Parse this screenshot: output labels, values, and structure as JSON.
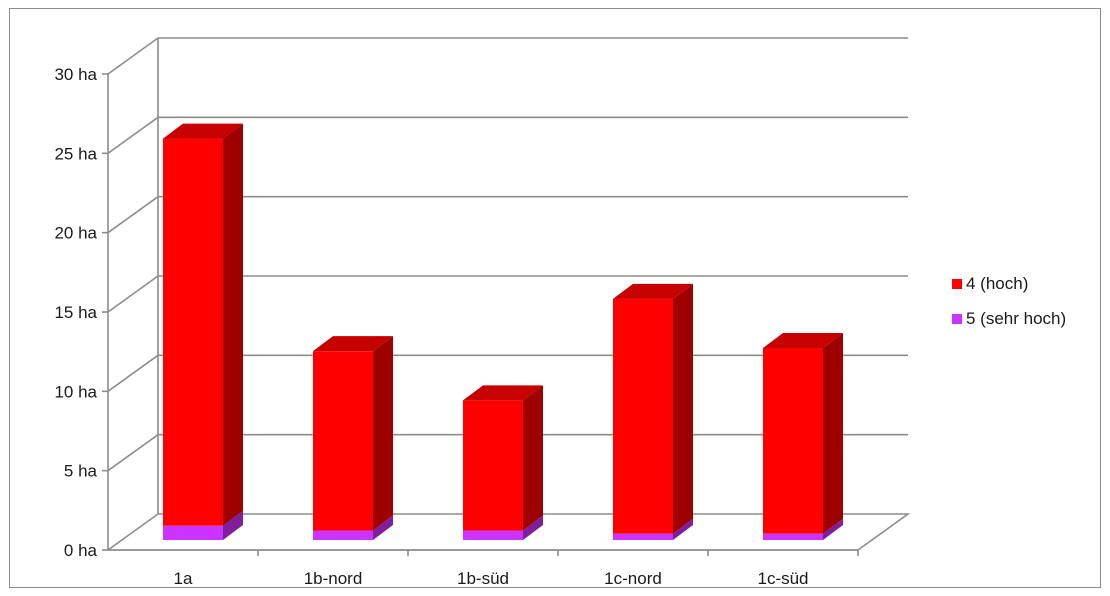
{
  "chart_data": {
    "type": "bar",
    "stacked": true,
    "three_d": true,
    "categories": [
      "1a",
      "1b-nord",
      "1b-süd",
      "1c-nord",
      "1c-süd"
    ],
    "series": [
      {
        "name": "5 (sehr hoch)",
        "values": [
          0.9,
          0.6,
          0.6,
          0.4,
          0.4
        ],
        "color": "#cc33ff"
      },
      {
        "name": "4 (hoch)",
        "values": [
          24.4,
          11.3,
          8.2,
          14.8,
          11.7
        ],
        "color": "#ff0000"
      }
    ],
    "yticks": [
      "0 ha",
      "5 ha",
      "10 ha",
      "15 ha",
      "20 ha",
      "25 ha",
      "30 ha"
    ],
    "ylim": [
      0,
      30
    ],
    "grid": true,
    "legend": "right"
  }
}
